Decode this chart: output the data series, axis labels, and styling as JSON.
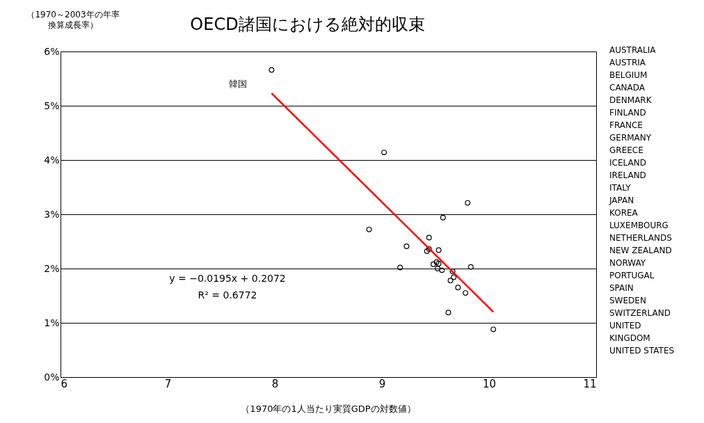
{
  "chart_data": {
    "type": "scatter",
    "title": "OECD諸国における絶対的収束",
    "xlabel": "（1970年の1人当たり実質GDPの対数値）",
    "ylabel": "（1970～2003年の年率換算成長率）",
    "series": [
      {
        "color": "#000000",
        "marker": "circle",
        "x": [
          7.97,
          9.02,
          9.8,
          9.57,
          8.88,
          9.44,
          9.23,
          9.44,
          9.42,
          9.53,
          9.17,
          9.48,
          9.51,
          9.53,
          9.52,
          9.56,
          9.83,
          9.66,
          9.67,
          9.64,
          9.71,
          9.78,
          9.62,
          10.04
        ],
        "values": [
          5.66,
          4.14,
          3.21,
          2.94,
          2.72,
          2.57,
          2.41,
          2.36,
          2.32,
          2.34,
          2.02,
          2.08,
          2.12,
          2.09,
          2.0,
          1.97,
          2.03,
          1.95,
          1.84,
          1.78,
          1.65,
          1.55,
          1.19,
          0.88
        ]
      },
      {
        "type": "line",
        "color": "#ff0000",
        "line_style": "solid",
        "x": [
          7.97,
          10.04
        ],
        "values": [
          5.23,
          1.2
        ]
      }
    ],
    "xlim": [
      6,
      11
    ],
    "xticks": [
      6,
      7,
      8,
      9,
      10,
      11
    ],
    "ylim": [
      0,
      6
    ],
    "yticks": [
      {
        "value": 0,
        "label": "0%"
      },
      {
        "value": 1,
        "label": "1%"
      },
      {
        "value": 2,
        "label": "2%"
      },
      {
        "value": 3,
        "label": "3%"
      },
      {
        "value": 4,
        "label": "4%"
      },
      {
        "value": 5,
        "label": "5%"
      },
      {
        "value": 6,
        "label": "6%"
      }
    ],
    "grid": "y",
    "annotations": [
      {
        "text": "韓国",
        "x": 7.97,
        "y": 5.66
      },
      "y = −0.0195x + 0.2072",
      "R² = 0.6772",
      "AUSTRALIA",
      "AUSTRIA",
      "BELGIUM",
      "CANADA",
      "DENMARK",
      "FINLAND",
      "FRANCE",
      "GERMANY",
      "GREECE",
      "ICELAND",
      "IRELAND",
      "ITALY",
      "JAPAN",
      "KOREA",
      "LUXEMBOURG",
      "NETHERLANDS",
      "NEW ZEALAND",
      "NORWAY",
      "PORTUGAL",
      "SPAIN",
      "SWEDEN",
      "SWITZERLAND",
      "UNITED",
      "KINGDOM",
      "UNITED STATES"
    ]
  }
}
